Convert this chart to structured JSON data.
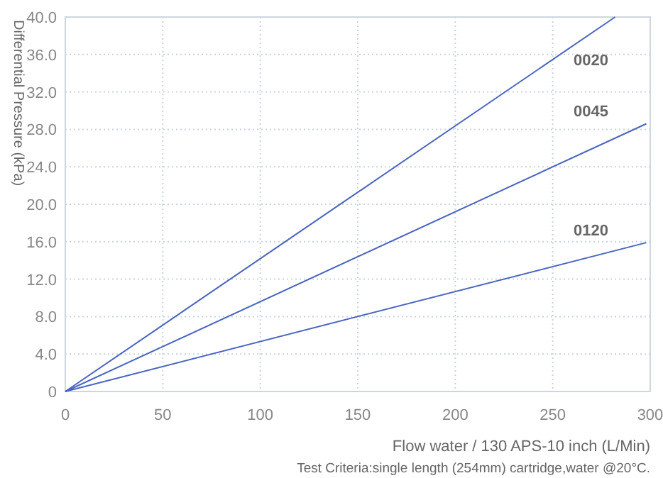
{
  "chart_data": {
    "type": "line",
    "xlabel": "Flow water / 130 APS-10 inch (L/Min)",
    "ylabel": "Differential Pressure (kPa)",
    "annotations": [
      "Test Criteria:single length (254mm) cartridge,water @20°C."
    ],
    "xlim": [
      0,
      300
    ],
    "xticks": [
      0,
      50,
      100,
      150,
      200,
      250,
      300
    ],
    "ylim": [
      0,
      40
    ],
    "yticks": [
      0,
      {
        "value": 4,
        "label": "4.0"
      },
      {
        "value": 8,
        "label": "8.0"
      },
      {
        "value": 12,
        "label": "12.0"
      },
      {
        "value": 16,
        "label": "16.0"
      },
      {
        "value": 20,
        "label": "20.0"
      },
      {
        "value": 24,
        "label": "24.0"
      },
      {
        "value": 28,
        "label": "28.0"
      },
      {
        "value": 32,
        "label": "32.0"
      },
      {
        "value": 36,
        "label": "36.0"
      },
      {
        "value": 40,
        "label": "40.0"
      }
    ],
    "grid": true,
    "legend": false,
    "marker": "none",
    "line_style": "solid",
    "series": [
      {
        "name": "0020",
        "color": "#4a65c0",
        "x": [
          0,
          282
        ],
        "values": [
          0,
          40
        ]
      },
      {
        "name": "0045",
        "color": "#4a65c0",
        "x": [
          0,
          298
        ],
        "values": [
          0,
          28.6
        ]
      },
      {
        "name": "0120",
        "color": "#4a65c0",
        "x": [
          0,
          298
        ],
        "values": [
          0,
          15.9
        ]
      }
    ]
  }
}
